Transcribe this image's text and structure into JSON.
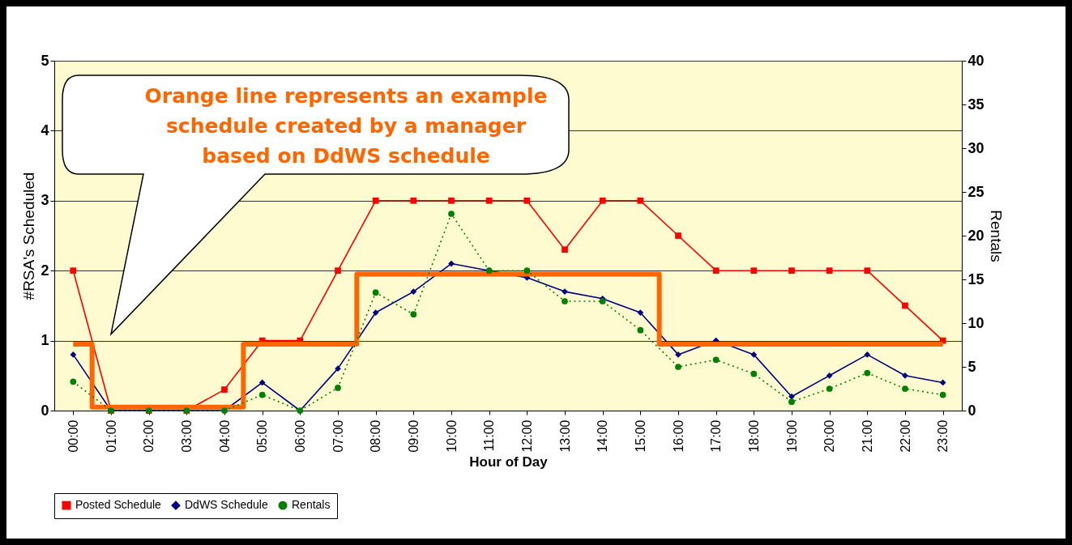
{
  "chart_data": {
    "type": "line",
    "xlabel": "Hour of Day",
    "ylabel": "#RSA's Scheduled",
    "y2label": "Rentals",
    "categories": [
      "00:00",
      "01:00",
      "02:00",
      "03:00",
      "04:00",
      "05:00",
      "06:00",
      "07:00",
      "08:00",
      "09:00",
      "10:00",
      "11:00",
      "12:00",
      "13:00",
      "14:00",
      "15:00",
      "16:00",
      "17:00",
      "18:00",
      "19:00",
      "20:00",
      "21:00",
      "22:00",
      "23:00"
    ],
    "series": [
      {
        "name": "Posted Schedule",
        "color": "#ff0000",
        "marker": "square",
        "line_style": "solid",
        "values": [
          2,
          0,
          0,
          0,
          0.3,
          1,
          1,
          2,
          3,
          3,
          3,
          3,
          3,
          2.3,
          3,
          3,
          2.5,
          2,
          2,
          2,
          2,
          2,
          1.5,
          1
        ]
      },
      {
        "name": "DdWS Schedule",
        "color": "#000080",
        "marker": "diamond",
        "line_style": "solid",
        "values": [
          0.8,
          0,
          0,
          0,
          0,
          0.4,
          0,
          0.6,
          1.4,
          1.7,
          2.1,
          2.0,
          1.9,
          1.7,
          1.6,
          1.4,
          0.8,
          1.0,
          0.8,
          0.2,
          0.5,
          0.8,
          0.5,
          0.4
        ]
      },
      {
        "name": "Rentals",
        "color": "#008000",
        "marker": "circle",
        "line_style": "dotted",
        "axis": "y2",
        "values": [
          3.3,
          0,
          0,
          0,
          0,
          1.8,
          0,
          2.6,
          13.5,
          11,
          22.5,
          16,
          16,
          12.5,
          12.5,
          9.2,
          5,
          5.8,
          4.2,
          1,
          2.5,
          4.3,
          2.5,
          1.8
        ]
      },
      {
        "type": "step",
        "color": "#ff6600",
        "marker": "none",
        "line_style": "solid",
        "values": [
          0.95,
          0.05,
          0.05,
          0.05,
          0.05,
          0.95,
          0.95,
          0.95,
          1.95,
          1.95,
          1.95,
          1.95,
          1.95,
          1.95,
          1.95,
          1.95,
          0.95,
          0.95,
          0.95,
          0.95,
          0.95,
          0.95,
          0.95,
          0.95
        ]
      }
    ],
    "ylim": [
      0,
      5
    ],
    "yticks": [
      0,
      1,
      2,
      3,
      4,
      5
    ],
    "y2lim": [
      0,
      40
    ],
    "y2ticks": [
      0,
      5,
      10,
      15,
      20,
      25,
      30,
      35,
      40
    ],
    "grid": "y",
    "legend": "bottom",
    "annotations": [
      "Orange line represents an example\nschedule created by a manager\nbased on DdWS schedule"
    ]
  }
}
